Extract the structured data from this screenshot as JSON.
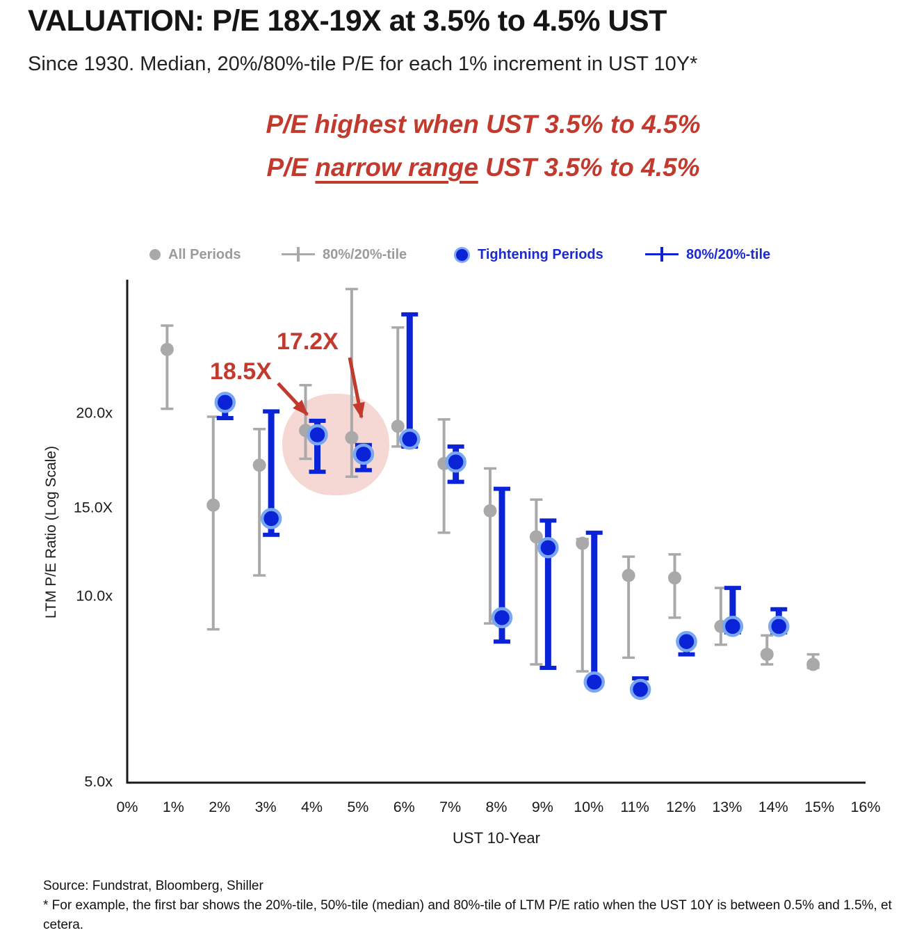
{
  "header": {
    "title": "VALUATION: P/E 18X-19X at 3.5% to 4.5% UST",
    "subtitle": "Since 1930. Median, 20%/80%-tile P/E for each 1% increment in UST 10Y*"
  },
  "callout": {
    "line1": "P/E highest when UST 3.5% to 4.5%",
    "line2_pre": "P/E ",
    "line2_underline": "narrow range",
    "line2_post": " UST 3.5% to 4.5%"
  },
  "legend": {
    "items": [
      {
        "label": "All Periods",
        "marker": "gray-dot"
      },
      {
        "label": "80%/20%-tile",
        "marker": "gray-errorbar"
      },
      {
        "label": "Tightening Periods",
        "marker": "blue-dot"
      },
      {
        "label": "80%/20%-tile",
        "marker": "blue-errorbar"
      }
    ]
  },
  "colors": {
    "red": "#C23A2E",
    "blue": "#0B23D6",
    "blue_halo": "#79A7F2",
    "gray": "#A9A9A9",
    "pink_highlight": "#F2CEC9",
    "axis": "#1a1a1a"
  },
  "chart_data": {
    "type": "scatter",
    "subtype": "median-with-20-80-percentile-error-bars",
    "title": "",
    "xlabel": "UST 10-Year",
    "ylabel": "LTM P/E Ratio (Log Scale)",
    "yscale": "log",
    "ylim": [
      5,
      33
    ],
    "grid": false,
    "x_ticks": [
      "0%",
      "1%",
      "2%",
      "3%",
      "4%",
      "5%",
      "6%",
      "7%",
      "8%",
      "9%",
      "10%",
      "11%",
      "12%",
      "13%",
      "14%",
      "15%",
      "16%"
    ],
    "y_ticks": [
      "20.0x",
      "15.0X",
      "10.0x",
      "5.0x"
    ],
    "categories": [
      "1%",
      "2%",
      "3%",
      "4%",
      "5%",
      "6%",
      "7%",
      "8%",
      "9%",
      "10%",
      "11%",
      "12%",
      "13%",
      "14%",
      "15%"
    ],
    "series": [
      {
        "name": "All Periods",
        "color": "#A9A9A9",
        "values": [
          {
            "p20": 20.4,
            "med": 25.5,
            "p80": 27.9
          },
          {
            "p20": 8.9,
            "med": 14.2,
            "p80": 19.8
          },
          {
            "p20": 10.9,
            "med": 16.5,
            "p80": 18.9
          },
          {
            "p20": 16.9,
            "med": 18.8,
            "p80": 22.3
          },
          {
            "p20": 15.8,
            "med": 18.3,
            "p80": 32.0
          },
          {
            "p20": 17.7,
            "med": 19.1,
            "p80": 27.7
          },
          {
            "p20": 12.8,
            "med": 16.6,
            "p80": 19.6
          },
          {
            "p20": 9.1,
            "med": 13.9,
            "p80": 16.3
          },
          {
            "p20": 7.8,
            "med": 12.6,
            "p80": 14.5
          },
          {
            "p20": 7.6,
            "med": 12.3,
            "p80": 12.5
          },
          {
            "p20": 8.0,
            "med": 10.9,
            "p80": 11.7
          },
          {
            "p20": 9.3,
            "med": 10.8,
            "p80": 11.8
          },
          {
            "p20": 8.4,
            "med": 9.0,
            "p80": 10.4
          },
          {
            "p20": 7.8,
            "med": 8.1,
            "p80": 8.7
          },
          {
            "p20": 7.7,
            "med": 7.8,
            "p80": 8.1
          }
        ]
      },
      {
        "name": "Tightening Periods",
        "color": "#0B23D6",
        "values": [
          null,
          {
            "p20": 19.7,
            "med": 20.9,
            "p80": 21.0
          },
          {
            "p20": 12.7,
            "med": 13.5,
            "p80": 20.2
          },
          {
            "p20": 16.1,
            "med": 18.5,
            "p80": 19.5
          },
          {
            "p20": 16.2,
            "med": 17.2,
            "p80": 17.8
          },
          {
            "p20": 17.7,
            "med": 18.2,
            "p80": 29.1
          },
          {
            "p20": 15.5,
            "med": 16.7,
            "p80": 17.7
          },
          {
            "p20": 8.5,
            "med": 9.3,
            "p80": 15.1
          },
          {
            "p20": 7.7,
            "med": 12.1,
            "p80": 13.4
          },
          {
            "p20": 7.2,
            "med": 7.3,
            "p80": 12.8
          },
          {
            "p20": 7.0,
            "med": 7.1,
            "p80": 7.4
          },
          {
            "p20": 8.1,
            "med": 8.5,
            "p80": 8.6
          },
          {
            "p20": 8.8,
            "med": 9.0,
            "p80": 10.4
          },
          {
            "p20": 8.8,
            "med": 9.0,
            "p80": 9.6
          },
          null
        ]
      }
    ],
    "annotations": [
      {
        "text": "18.5X",
        "points_to": "4% tightening median"
      },
      {
        "text": "17.2X",
        "points_to": "5% tightening median"
      }
    ],
    "highlight_region": "UST 3.5%-4.5% / 4.5%-5.5% buckets (pink blob)",
    "legend_position": "top"
  },
  "footer": {
    "source": "Source: Fundstrat, Bloomberg, Shiller",
    "note": "* For example, the first bar shows the 20%-tile, 50%-tile (median) and 80%-tile of LTM P/E ratio when the UST 10Y is between 0.5% and 1.5%, et cetera."
  }
}
